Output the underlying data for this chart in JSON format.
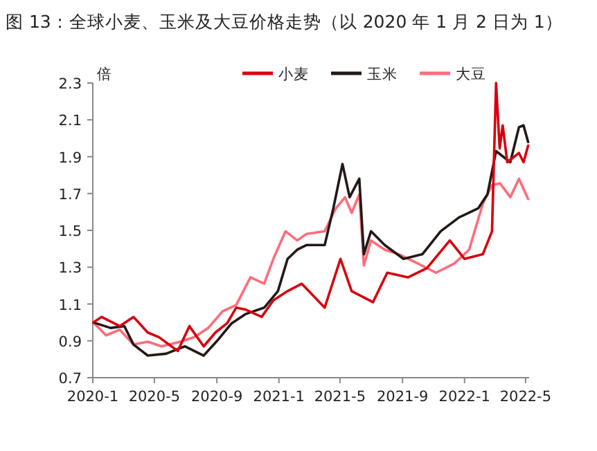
{
  "chart_data": {
    "type": "line",
    "title": "图 13：全球小麦、玉米及大豆价格走势（以 2020 年 1 月 2 日为 1）",
    "ylabel": "倍",
    "legend": "top",
    "grid": false,
    "xlim": [
      "2020-01-01",
      "2022-05-08"
    ],
    "xticks": [
      {
        "value": "2020-01-01",
        "label": "2020-1"
      },
      {
        "value": "2020-05-01",
        "label": "2020-5"
      },
      {
        "value": "2020-09-01",
        "label": "2020-9"
      },
      {
        "value": "2021-01-01",
        "label": "2021-1"
      },
      {
        "value": "2021-05-01",
        "label": "2021-5"
      },
      {
        "value": "2021-09-01",
        "label": "2021-9"
      },
      {
        "value": "2022-01-01",
        "label": "2022-1"
      },
      {
        "value": "2022-05-01",
        "label": "2022-5"
      }
    ],
    "ylim": [
      0.7,
      2.3
    ],
    "yticks": [
      0.7,
      0.9,
      1.1,
      1.3,
      1.5,
      1.7,
      1.9,
      2.1,
      2.3
    ],
    "series": [
      {
        "name": "小麦",
        "color": "#d7000f",
        "x": [
          "2020-01-02",
          "2020-01-18",
          "2020-02-23",
          "2020-03-21",
          "2020-04-18",
          "2020-05-10",
          "2020-06-16",
          "2020-07-09",
          "2020-08-06",
          "2020-08-29",
          "2020-09-21",
          "2020-10-09",
          "2020-10-27",
          "2020-11-28",
          "2020-12-21",
          "2021-01-18",
          "2021-02-15",
          "2021-04-01",
          "2021-05-02",
          "2021-05-24",
          "2021-07-05",
          "2021-08-02",
          "2021-09-12",
          "2021-10-19",
          "2021-12-03",
          "2022-01-01",
          "2022-02-06",
          "2022-02-24",
          "2022-03-04",
          "2022-03-11",
          "2022-03-17",
          "2022-03-26",
          "2022-04-18",
          "2022-04-27",
          "2022-05-06"
        ],
        "values": [
          1.0,
          1.03,
          0.98,
          1.03,
          0.945,
          0.92,
          0.845,
          0.98,
          0.87,
          0.945,
          0.995,
          1.08,
          1.07,
          1.03,
          1.12,
          1.17,
          1.21,
          1.08,
          1.345,
          1.17,
          1.11,
          1.27,
          1.245,
          1.295,
          1.445,
          1.345,
          1.37,
          1.495,
          2.3,
          1.945,
          2.07,
          1.87,
          1.92,
          1.87,
          1.96
        ]
      },
      {
        "name": "玉米",
        "color": "#231815",
        "x": [
          "2020-01-02",
          "2020-02-05",
          "2020-03-03",
          "2020-03-21",
          "2020-04-18",
          "2020-05-24",
          "2020-06-30",
          "2020-08-06",
          "2020-09-03",
          "2020-09-30",
          "2020-10-27",
          "2020-12-03",
          "2020-12-30",
          "2021-01-18",
          "2021-02-06",
          "2021-02-24",
          "2021-04-01",
          "2021-04-18",
          "2021-05-06",
          "2021-05-20",
          "2021-06-08",
          "2021-06-17",
          "2021-07-01",
          "2021-07-28",
          "2021-09-03",
          "2021-10-10",
          "2021-11-15",
          "2021-12-21",
          "2022-01-28",
          "2022-02-15",
          "2022-03-04",
          "2022-04-01",
          "2022-04-18",
          "2022-04-27",
          "2022-05-06"
        ],
        "values": [
          1.0,
          0.97,
          0.98,
          0.88,
          0.82,
          0.83,
          0.87,
          0.82,
          0.905,
          0.995,
          1.045,
          1.08,
          1.17,
          1.345,
          1.395,
          1.42,
          1.42,
          1.62,
          1.86,
          1.68,
          1.78,
          1.37,
          1.495,
          1.42,
          1.345,
          1.37,
          1.495,
          1.57,
          1.62,
          1.695,
          1.93,
          1.87,
          2.06,
          2.07,
          1.98
        ]
      },
      {
        "name": "大豆",
        "color": "#ff6b7b",
        "x": [
          "2020-01-02",
          "2020-01-27",
          "2020-02-23",
          "2020-03-21",
          "2020-04-18",
          "2020-05-15",
          "2020-06-21",
          "2020-07-18",
          "2020-08-15",
          "2020-09-12",
          "2020-10-09",
          "2020-11-06",
          "2020-12-03",
          "2020-12-21",
          "2021-01-14",
          "2021-02-06",
          "2021-02-24",
          "2021-04-01",
          "2021-04-23",
          "2021-05-11",
          "2021-05-24",
          "2021-06-08",
          "2021-06-17",
          "2021-07-01",
          "2021-07-28",
          "2021-08-25",
          "2021-10-01",
          "2021-11-06",
          "2021-12-12",
          "2022-01-10",
          "2022-02-06",
          "2022-02-24",
          "2022-03-12",
          "2022-04-01",
          "2022-04-18",
          "2022-05-06"
        ],
        "values": [
          1.0,
          0.93,
          0.96,
          0.88,
          0.895,
          0.87,
          0.895,
          0.92,
          0.97,
          1.06,
          1.095,
          1.245,
          1.21,
          1.345,
          1.495,
          1.445,
          1.48,
          1.495,
          1.62,
          1.68,
          1.595,
          1.695,
          1.31,
          1.445,
          1.395,
          1.37,
          1.32,
          1.27,
          1.32,
          1.395,
          1.645,
          1.745,
          1.755,
          1.68,
          1.78,
          1.67
        ]
      }
    ]
  }
}
